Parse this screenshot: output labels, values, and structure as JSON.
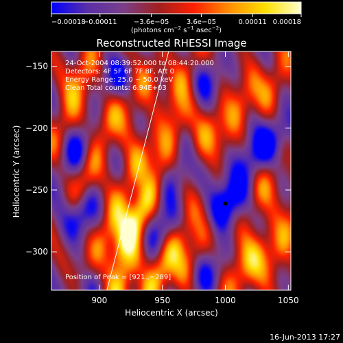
{
  "chart_data": {
    "type": "heatmap",
    "title": "Reconstructed RHESSI Image",
    "xlabel": "Heliocentric X (arcsec)",
    "ylabel": "Heliocentric Y (arcsec)",
    "xlim": [
      862,
      1052
    ],
    "ylim": [
      -331,
      -138
    ],
    "x_ticks": [
      900,
      950,
      1000,
      1050
    ],
    "y_ticks": [
      -150,
      -200,
      -250,
      -300
    ],
    "x_tick_labels": [
      "900",
      "950",
      "1000",
      "1050"
    ],
    "y_tick_labels": [
      "−150",
      "−200",
      "−250",
      "−300"
    ],
    "colorbar": {
      "min": -0.00018,
      "max": 0.00018,
      "tick_labels": [
        "−0.00018",
        "−0.00011",
        "−3.6e−05",
        "3.6e−05",
        "0.00011",
        "0.00018"
      ],
      "tick_values": [
        -0.00018,
        -0.00011,
        -3.6e-05,
        3.6e-05,
        0.00011,
        0.00018
      ],
      "unit_main": "(photons cm",
      "unit_sup1": "−2",
      "unit_mid": " s",
      "unit_sup2": "−1",
      "unit_mid2": " asec",
      "unit_sup3": "−2",
      "unit_end": ")",
      "colors": [
        "#0000ff",
        "#5a2fa8",
        "#7a3f8a",
        "#a02020",
        "#ff2000",
        "#ff9000",
        "#ffe000",
        "#ffffd0"
      ]
    },
    "annotations": {
      "time_range": "24-Oct-2004 08:39:52.000  to 08:44:20.000",
      "detectors": "Detectors: 4F 5F 6F 7F 8F, Att 0",
      "energy": "Energy Range: 25.0 − 50.0 keV",
      "clean": "Clean    Total counts: 6.94E+03",
      "peak": "Position of Peak = [921.,−289]"
    },
    "peak_position": [
      921,
      -289
    ],
    "minimum_marker": [
      1000,
      -261
    ],
    "limb_line": [
      [
        906,
        -331
      ],
      [
        955,
        -138
      ]
    ],
    "ridges": [
      {
        "x": 872,
        "y": -197,
        "amp": 0.00011
      },
      {
        "x": 889,
        "y": -240,
        "amp": 0.00013
      },
      {
        "x": 905,
        "y": -285,
        "amp": 0.00014
      },
      {
        "x": 918,
        "y": -322,
        "amp": 0.00017
      },
      {
        "x": 888,
        "y": -152,
        "amp": 0.00012
      },
      {
        "x": 910,
        "y": -190,
        "amp": 0.00011
      },
      {
        "x": 928,
        "y": -232,
        "amp": 0.00012
      },
      {
        "x": 938,
        "y": -258,
        "amp": 0.00015
      },
      {
        "x": 920,
        "y": -292,
        "amp": 0.00018
      },
      {
        "x": 940,
        "y": -330,
        "amp": 0.00015
      },
      {
        "x": 935,
        "y": -165,
        "amp": 0.0001
      },
      {
        "x": 958,
        "y": -203,
        "amp": 0.00011
      },
      {
        "x": 968,
        "y": -158,
        "amp": 0.00012
      },
      {
        "x": 985,
        "y": -205,
        "amp": 0.00011
      },
      {
        "x": 962,
        "y": -292,
        "amp": 0.00012
      },
      {
        "x": 975,
        "y": -300,
        "amp": 0.00011
      },
      {
        "x": 1010,
        "y": -185,
        "amp": 0.00012
      },
      {
        "x": 1040,
        "y": -160,
        "amp": 0.00011
      },
      {
        "x": 1030,
        "y": -248,
        "amp": 0.0001
      },
      {
        "x": 1022,
        "y": -308,
        "amp": 0.00012
      },
      {
        "x": 1046,
        "y": -290,
        "amp": 0.00013
      },
      {
        "x": 1005,
        "y": -320,
        "amp": 9e-05
      }
    ],
    "troughs": [
      {
        "x": 1000,
        "y": -262,
        "amp": -0.00018
      },
      {
        "x": 1020,
        "y": -225,
        "amp": -0.00012
      },
      {
        "x": 880,
        "y": -220,
        "amp": -0.00013
      },
      {
        "x": 885,
        "y": -268,
        "amp": -0.00014
      },
      {
        "x": 945,
        "y": -285,
        "amp": -0.00012
      },
      {
        "x": 960,
        "y": -240,
        "amp": -0.00012
      },
      {
        "x": 900,
        "y": -325,
        "amp": -0.0001
      },
      {
        "x": 915,
        "y": -160,
        "amp": -0.00011
      },
      {
        "x": 1040,
        "y": -205,
        "amp": -0.00011
      },
      {
        "x": 985,
        "y": -320,
        "amp": -0.0001
      },
      {
        "x": 985,
        "y": -160,
        "amp": -0.0001
      }
    ]
  },
  "footer": {
    "timestamp": "16-Jun-2013 17:27"
  }
}
